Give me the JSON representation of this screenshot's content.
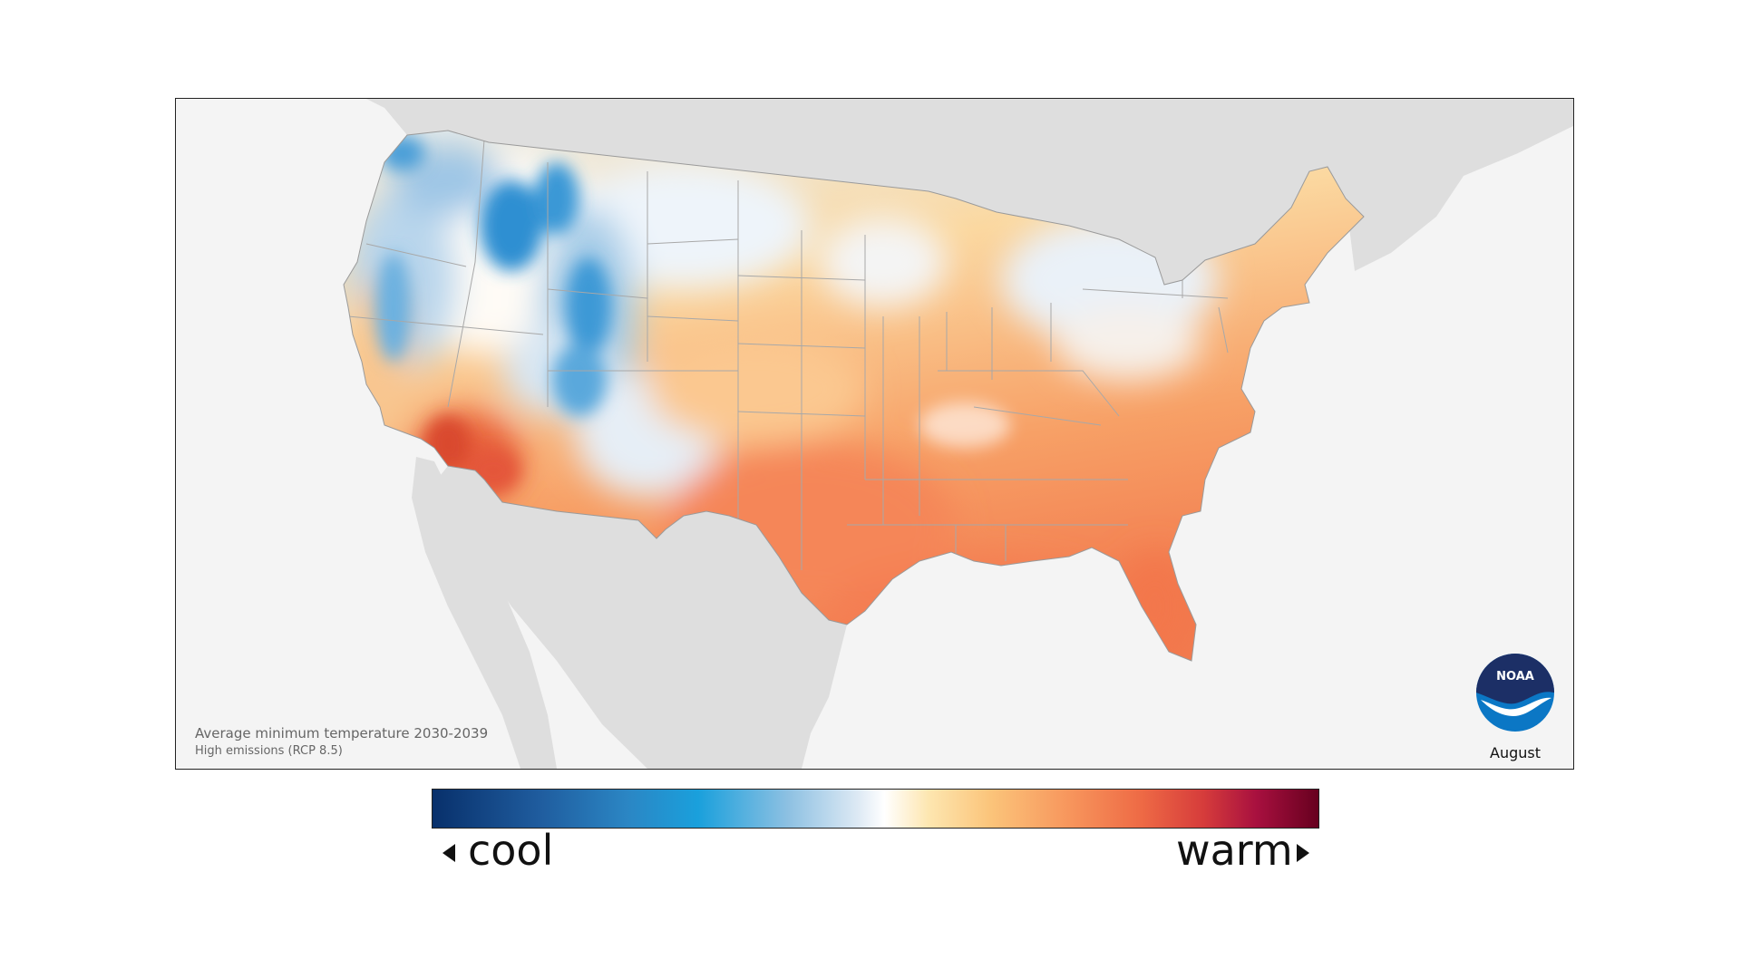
{
  "map": {
    "title": "Average minimum temperature 2030-2039",
    "subtitle": "High emissions (RCP 8.5)",
    "month": "August",
    "logo_text": "NOAA",
    "region": "Contiguous United States"
  },
  "legend": {
    "low_label": "cool",
    "high_label": "warm",
    "colors": {
      "coolest": "#08306b",
      "cool": "#1aa0dc",
      "neutral": "#ffffff",
      "warm": "#f7955c",
      "warmest": "#67001f"
    }
  },
  "colors": {
    "land_outside_us": "#dedede",
    "water": "#f4f4f4",
    "frame_border": "#222222",
    "noaa_blue": "#0b77c5",
    "noaa_navy": "#1c2f66"
  }
}
